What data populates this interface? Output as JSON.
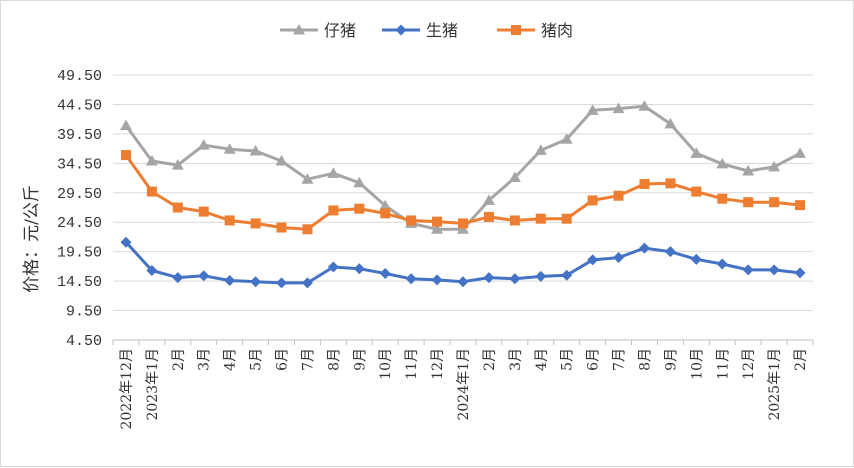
{
  "chart_data": {
    "type": "line",
    "title": "",
    "xlabel": "",
    "ylabel": "价格：元/公斤",
    "ylim": [
      4.5,
      49.5
    ],
    "yticks": [
      "4.50",
      "9.50",
      "14.50",
      "19.50",
      "24.50",
      "29.50",
      "34.50",
      "39.50",
      "44.50",
      "49.50"
    ],
    "grid": "horizontal",
    "legend": "top-center",
    "categories": [
      "2022年12月",
      "2023年1月",
      "2月",
      "3月",
      "4月",
      "5月",
      "6月",
      "7月",
      "8月",
      "9月",
      "10月",
      "11月",
      "12月",
      "2024年1月",
      "2月",
      "3月",
      "4月",
      "5月",
      "6月",
      "7月",
      "8月",
      "9月",
      "10月",
      "11月",
      "12月",
      "2025年1月",
      "2月"
    ],
    "series": [
      {
        "name": "仔猪",
        "color": "#a5a5a5",
        "marker": "triangle",
        "values": [
          40.9,
          34.9,
          34.2,
          37.6,
          36.9,
          36.6,
          34.9,
          31.8,
          32.8,
          31.2,
          27.3,
          24.3,
          23.3,
          23.3,
          28.2,
          32.1,
          36.7,
          38.6,
          43.5,
          43.8,
          44.2,
          41.2,
          36.2,
          34.4,
          33.2,
          33.9,
          36.2
        ]
      },
      {
        "name": "生猪",
        "color": "#4472c4",
        "marker": "diamond",
        "values": [
          21.1,
          16.3,
          15.1,
          15.4,
          14.6,
          14.4,
          14.2,
          14.2,
          16.9,
          16.6,
          15.8,
          14.9,
          14.7,
          14.4,
          15.1,
          14.9,
          15.3,
          15.5,
          18.1,
          18.5,
          20.1,
          19.5,
          18.2,
          17.4,
          16.4,
          16.4,
          15.9
        ]
      },
      {
        "name": "猪肉",
        "color": "#ed7d31",
        "marker": "square",
        "values": [
          35.9,
          29.7,
          27.0,
          26.3,
          24.8,
          24.3,
          23.6,
          23.3,
          26.5,
          26.8,
          26.0,
          24.8,
          24.6,
          24.3,
          25.4,
          24.8,
          25.1,
          25.1,
          28.2,
          29.0,
          31.0,
          31.1,
          29.7,
          28.5,
          27.9,
          27.9,
          27.4
        ]
      }
    ]
  }
}
